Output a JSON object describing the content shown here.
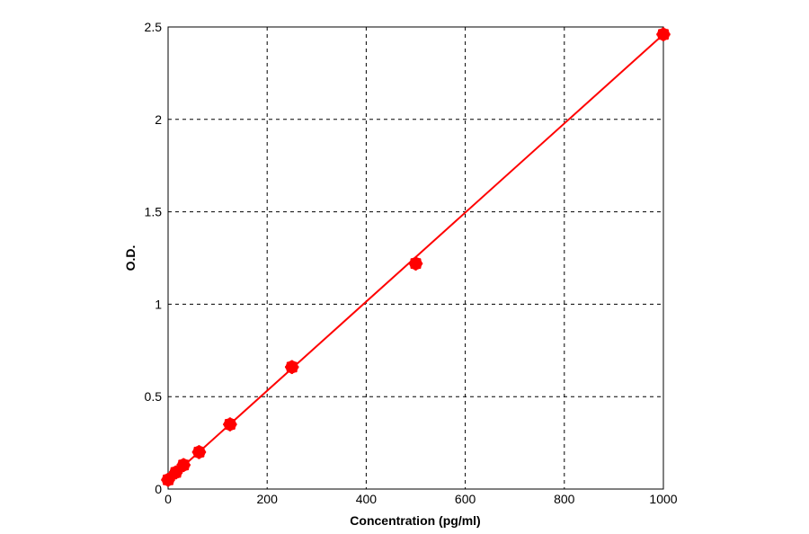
{
  "chart_data": {
    "type": "scatter",
    "title": "",
    "xlabel": "Concentration (pg/ml)",
    "ylabel": "O.D.",
    "xlim": [
      0,
      1000
    ],
    "ylim": [
      0,
      2.5
    ],
    "xticks": [
      {
        "value": 0,
        "label": "0"
      },
      {
        "value": 200,
        "label": "200"
      },
      {
        "value": 400,
        "label": "400"
      },
      {
        "value": 600,
        "label": "600"
      },
      {
        "value": 800,
        "label": "800"
      },
      {
        "value": 1000,
        "label": "1000"
      }
    ],
    "yticks": [
      {
        "value": 0,
        "label": "0"
      },
      {
        "value": 0.5,
        "label": "0.5"
      },
      {
        "value": 1,
        "label": "1"
      },
      {
        "value": 1.5,
        "label": "1.5"
      },
      {
        "value": 2,
        "label": "2"
      },
      {
        "value": 2.5,
        "label": "2.5"
      }
    ],
    "grid": true,
    "series": [
      {
        "color": "#ff0000",
        "points": [
          {
            "x": 0,
            "y": 0.05
          },
          {
            "x": 15.6,
            "y": 0.09
          },
          {
            "x": 31.2,
            "y": 0.13
          },
          {
            "x": 62.5,
            "y": 0.2
          },
          {
            "x": 125,
            "y": 0.35
          },
          {
            "x": 250,
            "y": 0.66
          },
          {
            "x": 500,
            "y": 1.22
          },
          {
            "x": 1000,
            "y": 2.46
          }
        ]
      }
    ],
    "fit_line": {
      "color": "#ff0000",
      "points": [
        {
          "x": 0,
          "y": 0.05
        },
        {
          "x": 1000,
          "y": 2.46
        }
      ]
    }
  }
}
